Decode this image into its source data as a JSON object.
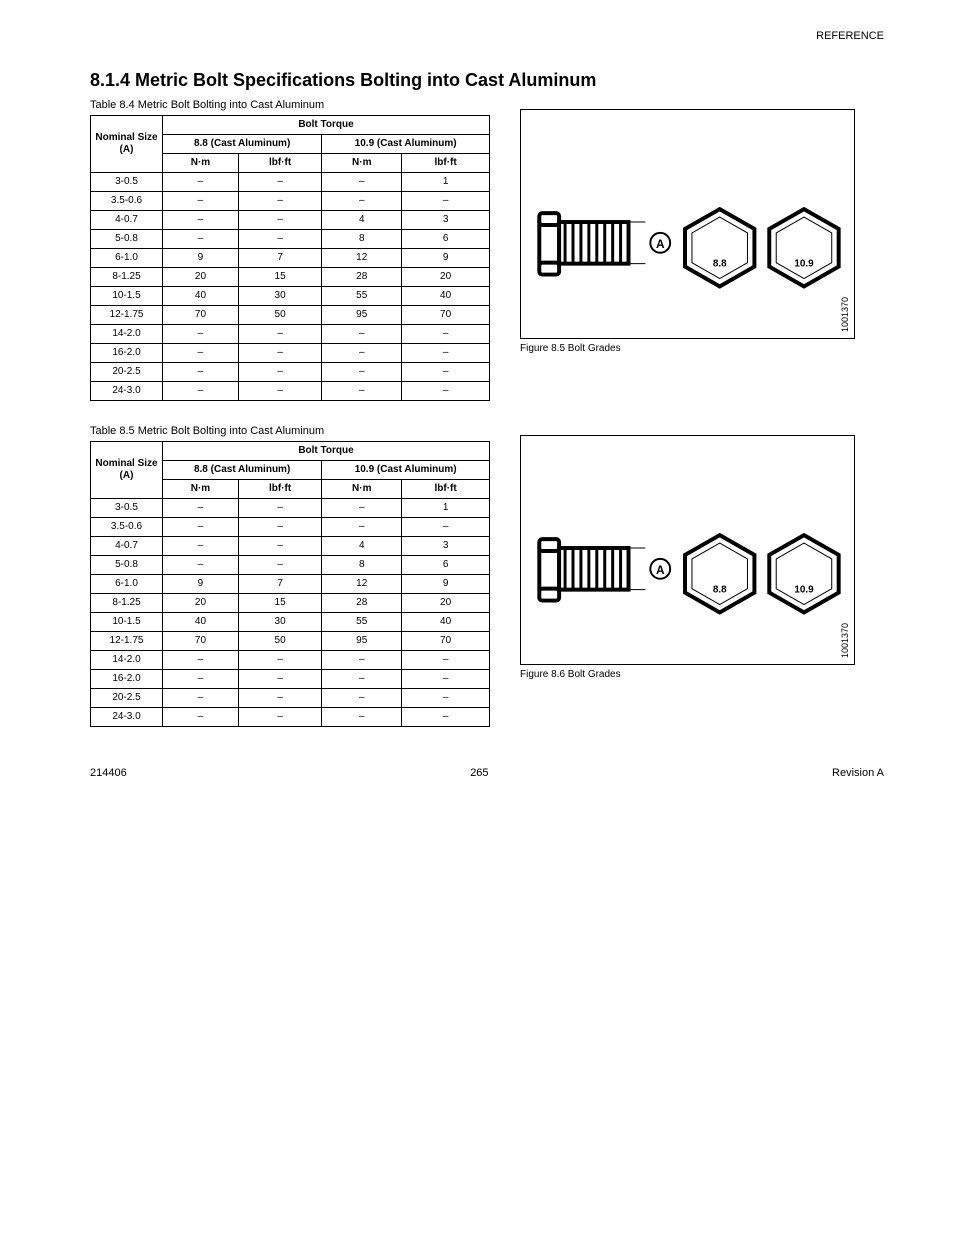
{
  "headerRight": "REFERENCE",
  "sectionTitle": "8.1.4  Metric Bolt Specifications Bolting into Cast Aluminum",
  "table1": {
    "title": "Table 8.4 Metric Bolt Bolting into Cast Aluminum",
    "headers": {
      "nominal": "Nominal Size (A)",
      "groupA": "Bolt Torque",
      "subA1": "8.8 (Cast Aluminum)",
      "subA2": "10.9 (Cast Aluminum)",
      "nm": "N·m",
      "lbft": "lbf·ft"
    },
    "rows": [
      [
        "3-0.5",
        "–",
        "–",
        "–",
        "1"
      ],
      [
        "3.5-0.6",
        "–",
        "–",
        "–",
        "–"
      ],
      [
        "4-0.7",
        "–",
        "–",
        "4",
        "3"
      ],
      [
        "5-0.8",
        "–",
        "–",
        "8",
        "6"
      ],
      [
        "6-1.0",
        "9",
        "7",
        "12",
        "9"
      ],
      [
        "8-1.25",
        "20",
        "15",
        "28",
        "20"
      ],
      [
        "10-1.5",
        "40",
        "30",
        "55",
        "40"
      ],
      [
        "12-1.75",
        "70",
        "50",
        "95",
        "70"
      ],
      [
        "14-2.0",
        "–",
        "–",
        "–",
        "–"
      ],
      [
        "16-2.0",
        "–",
        "–",
        "–",
        "–"
      ],
      [
        "20-2.5",
        "–",
        "–",
        "–",
        "–"
      ],
      [
        "24-3.0",
        "–",
        "–",
        "–",
        "–"
      ]
    ]
  },
  "table2": {
    "title": "Table 8.5 Metric Bolt Bolting into Cast Aluminum",
    "headers": {
      "nominal": "Nominal Size (A)",
      "groupA": "Bolt Torque",
      "subA1": "8.8 (Cast Aluminum)",
      "subA2": "10.9 (Cast Aluminum)",
      "nm": "N·m",
      "lbft": "lbf·ft"
    },
    "rows": [
      [
        "3-0.5",
        "–",
        "–",
        "–",
        "1"
      ],
      [
        "3.5-0.6",
        "–",
        "–",
        "–",
        "–"
      ],
      [
        "4-0.7",
        "–",
        "–",
        "4",
        "3"
      ],
      [
        "5-0.8",
        "–",
        "–",
        "8",
        "6"
      ],
      [
        "6-1.0",
        "9",
        "7",
        "12",
        "9"
      ],
      [
        "8-1.25",
        "20",
        "15",
        "28",
        "20"
      ],
      [
        "10-1.5",
        "40",
        "30",
        "55",
        "40"
      ],
      [
        "12-1.75",
        "70",
        "50",
        "95",
        "70"
      ],
      [
        "14-2.0",
        "–",
        "–",
        "–",
        "–"
      ],
      [
        "16-2.0",
        "–",
        "–",
        "–",
        "–"
      ],
      [
        "20-2.5",
        "–",
        "–",
        "–",
        "–"
      ],
      [
        "24-3.0",
        "–",
        "–",
        "–",
        "–"
      ]
    ]
  },
  "figureRef": "1001370",
  "figure1Caption": "Figure 8.5 Bolt Grades",
  "figure2Caption": "Figure 8.6 Bolt Grades",
  "labels": {
    "circleA": "A",
    "mark88": "8.8",
    "mark109": "10.9"
  },
  "footerLeft": "214406",
  "footerCenter": "265",
  "footerRight": "Revision A"
}
